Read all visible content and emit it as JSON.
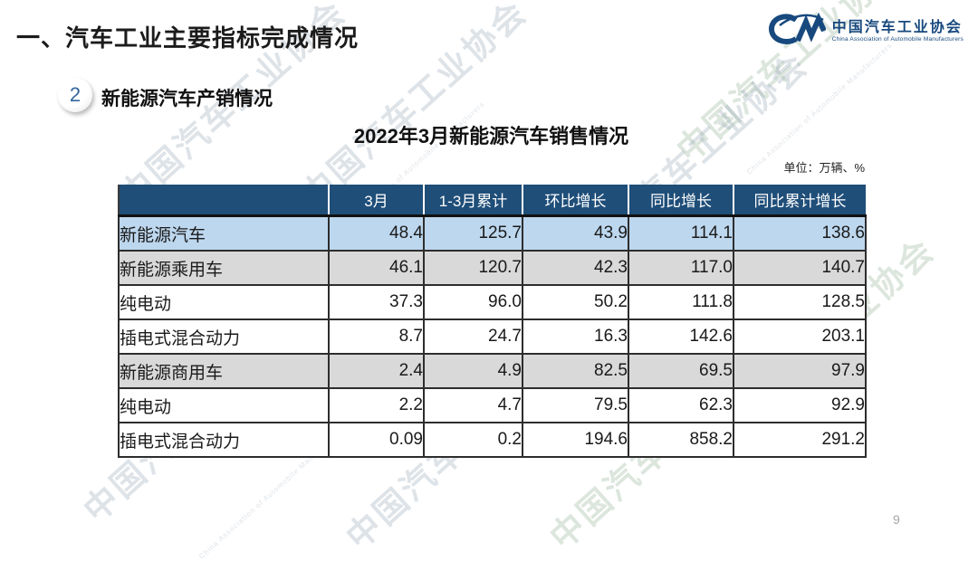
{
  "page": {
    "title": "一、汽车工业主要指标完成情况",
    "page_number": "9"
  },
  "logo": {
    "name_cn": "中国汽车工业协会",
    "name_en": "China Association of Automobile Manufacturers"
  },
  "section": {
    "badge_number": "2",
    "title": "新能源汽车产销情况"
  },
  "table": {
    "title": "2022年3月新能源汽车销售情况",
    "unit_label": "单位：万辆、%",
    "columns": [
      "",
      "3月",
      "1-3月累计",
      "环比增长",
      "同比增长",
      "同比累计增长"
    ],
    "rows": [
      {
        "label": "新能源汽车",
        "indent": 0,
        "style": "blue",
        "values": [
          "48.4",
          "125.7",
          "43.9",
          "114.1",
          "138.6"
        ]
      },
      {
        "label": "新能源乘用车",
        "indent": 1,
        "style": "gray",
        "values": [
          "46.1",
          "120.7",
          "42.3",
          "117.0",
          "140.7"
        ]
      },
      {
        "label": "纯电动",
        "indent": 2,
        "style": "white",
        "values": [
          "37.3",
          "96.0",
          "50.2",
          "111.8",
          "128.5"
        ]
      },
      {
        "label": "插电式混合动力",
        "indent": 2,
        "style": "white",
        "values": [
          "8.7",
          "24.7",
          "16.3",
          "142.6",
          "203.1"
        ]
      },
      {
        "label": "新能源商用车",
        "indent": 1,
        "style": "gray",
        "values": [
          "2.4",
          "4.9",
          "82.5",
          "69.5",
          "97.9"
        ]
      },
      {
        "label": "纯电动",
        "indent": 2,
        "style": "white",
        "values": [
          "2.2",
          "4.7",
          "79.5",
          "62.3",
          "92.9"
        ]
      },
      {
        "label": "插电式混合动力",
        "indent": 2,
        "style": "white",
        "values": [
          "0.09",
          "0.2",
          "194.6",
          "858.2",
          "291.2"
        ]
      }
    ]
  },
  "watermark": {
    "text": "中国汽车工业协会",
    "subtext": "China Association of Automobile Manufacturers"
  },
  "colors": {
    "header_bg": "#1f4e79",
    "row_blue": "#bdd7ee",
    "row_gray": "#d9d9d9",
    "brand_blue": "#17497e"
  }
}
